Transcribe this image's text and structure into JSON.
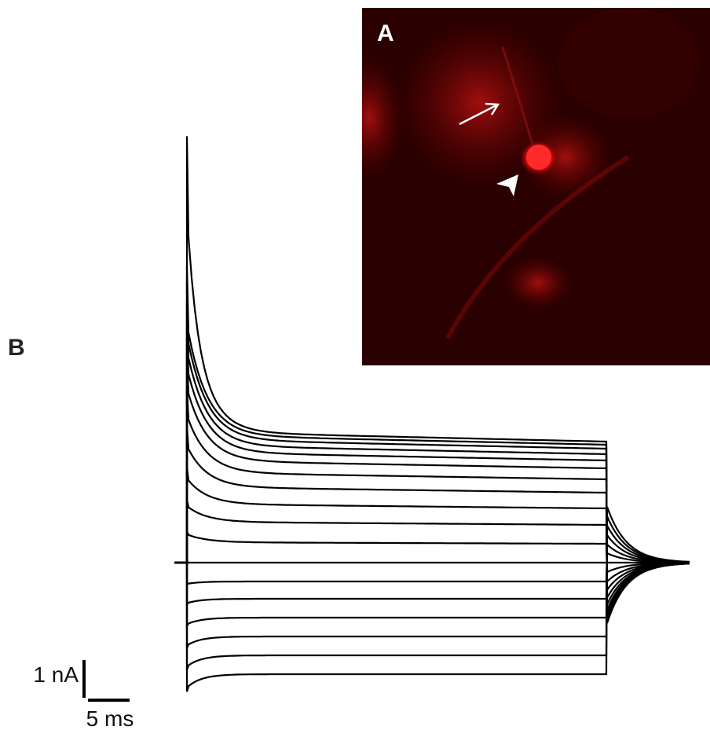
{
  "panel_a": {
    "label": "A"
  },
  "panel_b": {
    "label": "B",
    "scale_bar": {
      "current": "1 nA",
      "time": "5 ms"
    }
  }
}
